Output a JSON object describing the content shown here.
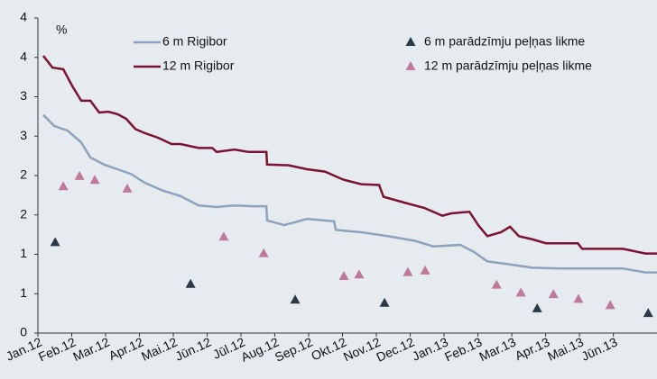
{
  "chart_data": {
    "type": "line",
    "y_label": "%",
    "categories": [
      "Jan.12",
      "Feb.12",
      "Mar.12",
      "Apr.12",
      "Mai.12",
      "Jūn.12",
      "Jūl.12",
      "Aug.12",
      "Sep.12",
      "Okt.12",
      "Nov.12",
      "Dec.12",
      "Jan.13",
      "Feb.13",
      "Mar.13",
      "Apr.13",
      "Mai.13",
      "Jūn.13"
    ],
    "xlim": [
      0,
      18.29
    ],
    "ylim": [
      0,
      4
    ],
    "yticks": [
      0,
      {
        "value": 0.5,
        "label": "1"
      },
      1,
      {
        "value": 1.5,
        "label": "2"
      },
      2,
      {
        "value": 2.5,
        "label": "3"
      },
      3,
      {
        "value": 3.5,
        "label": "4"
      },
      {
        "value": 4,
        "label": "4"
      }
    ],
    "series": [
      {
        "name": "6 m Rigibor",
        "type": "line",
        "color": "#8da2bb",
        "x": [
          0.16,
          0.48,
          0.88,
          1.28,
          1.55,
          1.95,
          2.35,
          2.75,
          3.15,
          3.68,
          4.21,
          4.75,
          5.28,
          5.81,
          6.35,
          6.75,
          6.77,
          7.28,
          7.95,
          8.75,
          8.8,
          9.55,
          10.35,
          11.15,
          11.68,
          12.48,
          12.88,
          13.28,
          13.81,
          14.61,
          15.41,
          17.28,
          17.95,
          18.29
        ],
        "values": [
          2.77,
          2.63,
          2.57,
          2.42,
          2.23,
          2.14,
          2.08,
          2.02,
          1.91,
          1.81,
          1.74,
          1.62,
          1.6,
          1.62,
          1.61,
          1.61,
          1.43,
          1.37,
          1.45,
          1.42,
          1.31,
          1.28,
          1.23,
          1.17,
          1.1,
          1.12,
          1.03,
          0.91,
          0.88,
          0.83,
          0.82,
          0.82,
          0.77,
          0.77
        ]
      },
      {
        "name": "12 m Rigibor",
        "type": "line",
        "color": "#7b1232",
        "x": [
          0.16,
          0.43,
          0.75,
          1.01,
          1.28,
          1.55,
          1.81,
          2.08,
          2.35,
          2.61,
          2.88,
          3.15,
          3.55,
          3.95,
          4.21,
          4.75,
          5.15,
          5.28,
          5.81,
          6.21,
          6.75,
          6.77,
          7.41,
          7.95,
          8.48,
          9.01,
          9.55,
          10.08,
          10.21,
          10.88,
          11.41,
          11.95,
          12.21,
          12.75,
          13.01,
          13.28,
          13.68,
          13.95,
          14.21,
          14.61,
          15.01,
          15.95,
          16.08,
          17.28,
          17.95,
          18.29
        ],
        "values": [
          3.52,
          3.37,
          3.35,
          3.14,
          2.95,
          2.95,
          2.8,
          2.81,
          2.78,
          2.72,
          2.59,
          2.54,
          2.48,
          2.4,
          2.4,
          2.35,
          2.35,
          2.3,
          2.33,
          2.3,
          2.3,
          2.14,
          2.13,
          2.08,
          2.05,
          1.95,
          1.89,
          1.88,
          1.73,
          1.65,
          1.59,
          1.49,
          1.52,
          1.54,
          1.37,
          1.23,
          1.28,
          1.35,
          1.23,
          1.19,
          1.14,
          1.14,
          1.07,
          1.07,
          1.01,
          1.01
        ]
      },
      {
        "name": "6 m parādzīmju peļņas likme",
        "type": "scatter",
        "color": "#2b3947",
        "x": [
          0.51,
          4.51,
          7.6,
          10.24,
          14.75,
          18.03
        ],
        "values": [
          1.15,
          0.62,
          0.42,
          0.38,
          0.31,
          0.25
        ]
      },
      {
        "name": "12 m parādzīmju peļņas likme",
        "type": "scatter",
        "color": "#c0799a",
        "x": [
          0.75,
          1.23,
          1.68,
          2.64,
          5.49,
          6.67,
          9.04,
          9.49,
          10.93,
          11.44,
          13.55,
          14.27,
          15.23,
          15.97,
          16.91
        ],
        "values": [
          1.86,
          1.99,
          1.94,
          1.83,
          1.22,
          1.01,
          0.72,
          0.74,
          0.77,
          0.79,
          0.61,
          0.51,
          0.49,
          0.43,
          0.35
        ]
      }
    ]
  }
}
